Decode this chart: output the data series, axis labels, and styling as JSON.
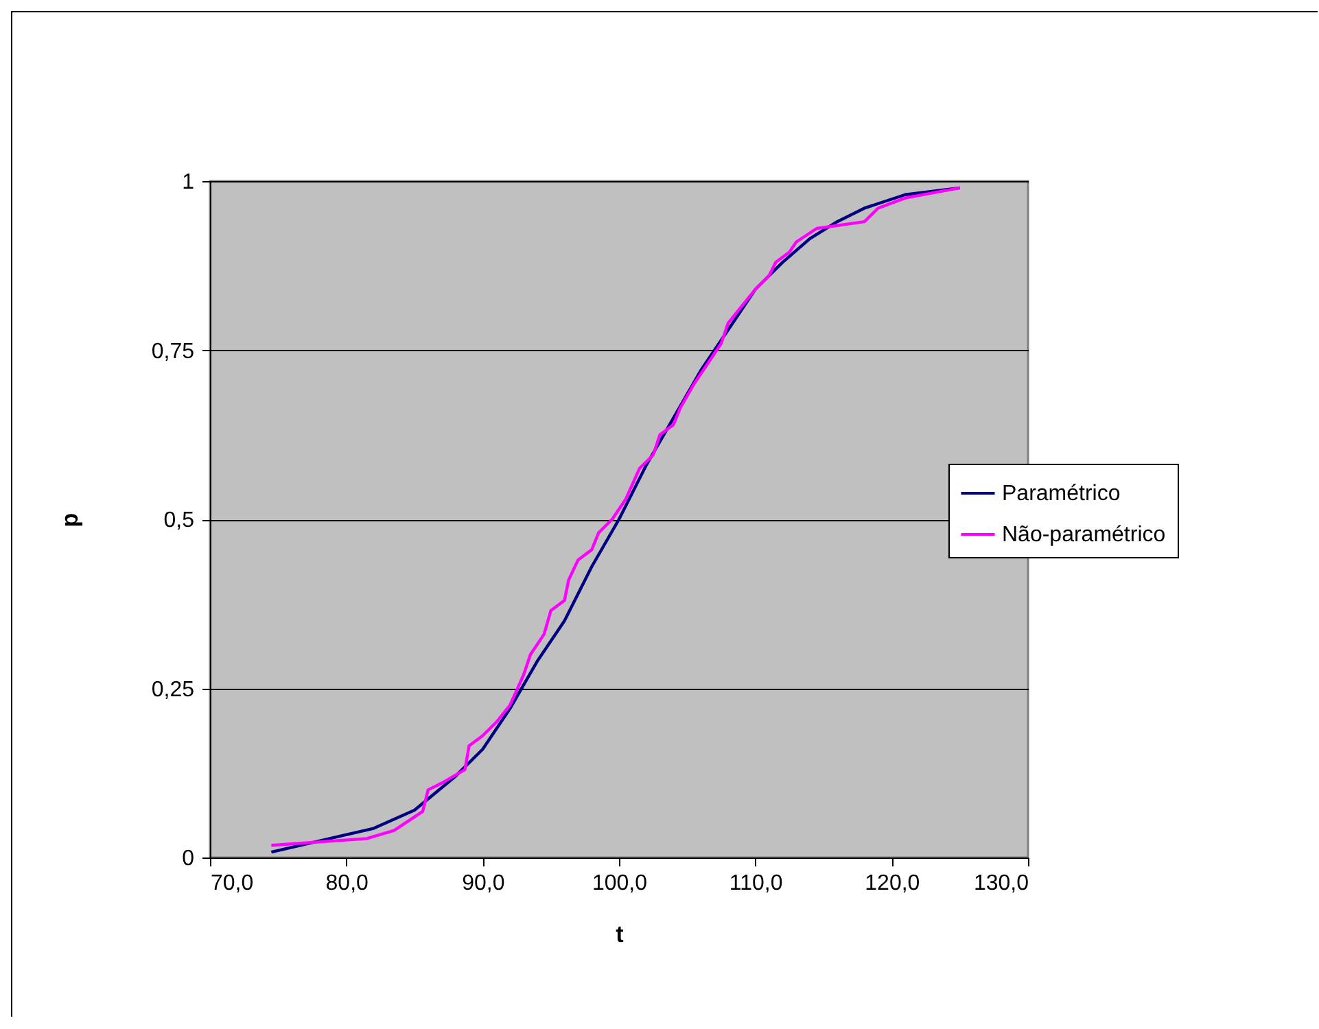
{
  "chart_data": {
    "type": "line",
    "xlabel": "t",
    "ylabel": "p",
    "xlim": [
      70,
      130
    ],
    "xticks": [
      {
        "value": 70,
        "label": "70,0"
      },
      {
        "value": 80,
        "label": "80,0"
      },
      {
        "value": 90,
        "label": "90,0"
      },
      {
        "value": 100,
        "label": "100,0"
      },
      {
        "value": 110,
        "label": "110,0"
      },
      {
        "value": 120,
        "label": "120,0"
      },
      {
        "value": 130,
        "label": "130,0"
      }
    ],
    "ylim": [
      0,
      1
    ],
    "yticks": [
      0,
      {
        "value": 0.25,
        "label": "0,25"
      },
      {
        "value": 0.5,
        "label": "0,5"
      },
      {
        "value": 0.75,
        "label": "0,75"
      },
      1
    ],
    "grid": "y",
    "legend": "right",
    "marker": "none",
    "series": [
      {
        "name": "Paramétrico",
        "color": "#000080",
        "x": [
          74.5,
          82,
          85,
          88,
          90,
          92,
          94,
          96,
          98,
          100,
          102,
          104,
          106,
          108,
          110,
          112,
          114,
          116,
          118,
          121,
          125
        ],
        "values": [
          0.008,
          0.043,
          0.07,
          0.12,
          0.16,
          0.22,
          0.29,
          0.35,
          0.43,
          0.5,
          0.58,
          0.65,
          0.72,
          0.78,
          0.84,
          0.88,
          0.915,
          0.94,
          0.96,
          0.98,
          0.99
        ]
      },
      {
        "name": "Não-paramétrico",
        "color": "#ff00ff",
        "x": [
          74.5,
          81.5,
          83.5,
          85.6,
          86,
          87,
          88.7,
          89,
          90,
          91,
          92,
          93,
          93.5,
          94.5,
          95,
          96,
          96.3,
          97,
          98,
          98.5,
          99.5,
          100.5,
          101.5,
          102.5,
          103,
          104,
          104.5,
          105.5,
          106.5,
          107.5,
          108,
          109,
          110,
          111,
          111.5,
          112.5,
          113,
          114.5,
          118,
          119,
          121,
          125
        ],
        "values": [
          0.018,
          0.028,
          0.04,
          0.068,
          0.1,
          0.11,
          0.13,
          0.165,
          0.18,
          0.2,
          0.225,
          0.27,
          0.3,
          0.33,
          0.365,
          0.38,
          0.41,
          0.44,
          0.455,
          0.48,
          0.5,
          0.53,
          0.575,
          0.595,
          0.625,
          0.64,
          0.665,
          0.7,
          0.73,
          0.76,
          0.79,
          0.815,
          0.84,
          0.86,
          0.88,
          0.895,
          0.91,
          0.93,
          0.94,
          0.96,
          0.975,
          0.99
        ]
      }
    ]
  }
}
